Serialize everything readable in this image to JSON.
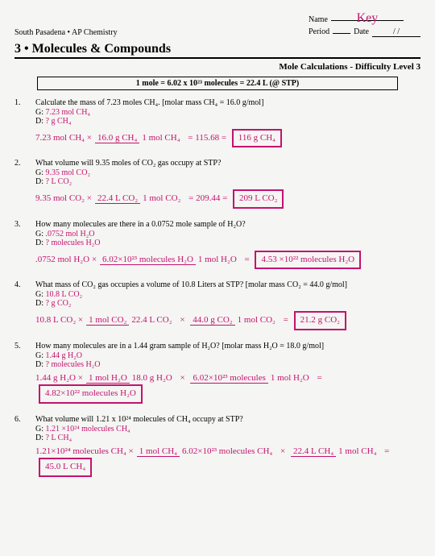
{
  "header": {
    "school": "South Pasadena • AP Chemistry",
    "name_label": "Name",
    "name_value": "Key",
    "period_label": "Period",
    "date_label": "Date",
    "date_value": "/     /"
  },
  "title": "3 • Molecules & Compounds",
  "subtitle": "Mole Calculations - Difficulty Level 3",
  "formula": "1 mole = 6.02 x 10²³ molecules  =  22.4 L (@ STP)",
  "problems": [
    {
      "num": "1.",
      "text": "Calculate the mass of 7.23 moles CH₄.  [molar mass CH₄ = 16.0 g/mol]",
      "given": "G: 7.23 mol CH₄",
      "desired": "D: ? g CH₄",
      "work_lhs": "7.23 mol CH₄ ×",
      "frac_top": "16.0 g CH₄",
      "frac_bot": "1 mol CH₄",
      "mid": "=  115.68  =",
      "answer": "116 g CH₄"
    },
    {
      "num": "2.",
      "text": "What volume will 9.35 moles of CO₂ gas occupy at STP?",
      "given": "G: 9.35 mol CO₂",
      "desired": "D: ? L CO₂",
      "work_lhs": "9.35 mol CO₂ ×",
      "frac_top": "22.4 L CO₂",
      "frac_bot": "1 mol CO₂",
      "mid": "= 209.44 =",
      "answer": "209 L CO₂"
    },
    {
      "num": "3.",
      "text": "How many molecules are there in a 0.0752 mole sample of H₂O?",
      "given": "G: .0752 mol H₂O",
      "desired": "D: ? molecules H₂O",
      "work_lhs": ".0752 mol H₂O ×",
      "frac_top": "6.02×10²³ molecules H₂O",
      "frac_bot": "1 mol H₂O",
      "mid": "=",
      "answer": "4.53 ×10²² molecules H₂O"
    },
    {
      "num": "4.",
      "text": "What mass of CO₂ gas occupies a volume of 10.8 Liters at STP?  [molar mass CO₂ = 44.0 g/mol]",
      "given": "G: 10.8 L CO₂",
      "desired": "D: ? g CO₂",
      "work_lhs": "10.8 L CO₂ ×",
      "frac_top": "1 mol CO₂",
      "frac_bot": "22.4 L CO₂",
      "frac2_top": "44.0 g CO₂",
      "frac2_bot": "1 mol CO₂",
      "mid": "=",
      "answer": "21.2 g CO₂"
    },
    {
      "num": "5.",
      "text": "How many molecules are in a 1.44 gram sample of H₂O? [molar mass H₂O = 18.0 g/mol]",
      "given": "G: 1.44 g H₂O",
      "desired": "D: ? molecules H₂O",
      "work_lhs": "1.44 g H₂O ×",
      "frac_top": "1 mol H₂O",
      "frac_bot": "18.0 g H₂O",
      "frac2_top": "6.02×10²³ molecules",
      "frac2_bot": "1 mol H₂O",
      "mid": "=",
      "answer": "4.82×10²² molecules H₂O"
    },
    {
      "num": "6.",
      "text": "What volume will 1.21 x 10²⁴ molecules of CH₄ occupy at STP?",
      "given": "G: 1.21 ×10²⁴ molecules CH₄",
      "desired": "D: ? L CH₄",
      "work_lhs": "1.21×10²⁴ molecules CH₄ ×",
      "frac_top": "1 mol CH₄",
      "frac_bot": "6.02×10²³ molecules CH₄",
      "frac2_top": "22.4 L CH₄",
      "frac2_bot": "1 mol CH₄",
      "mid": "=",
      "answer": "45.0 L CH₄"
    }
  ]
}
